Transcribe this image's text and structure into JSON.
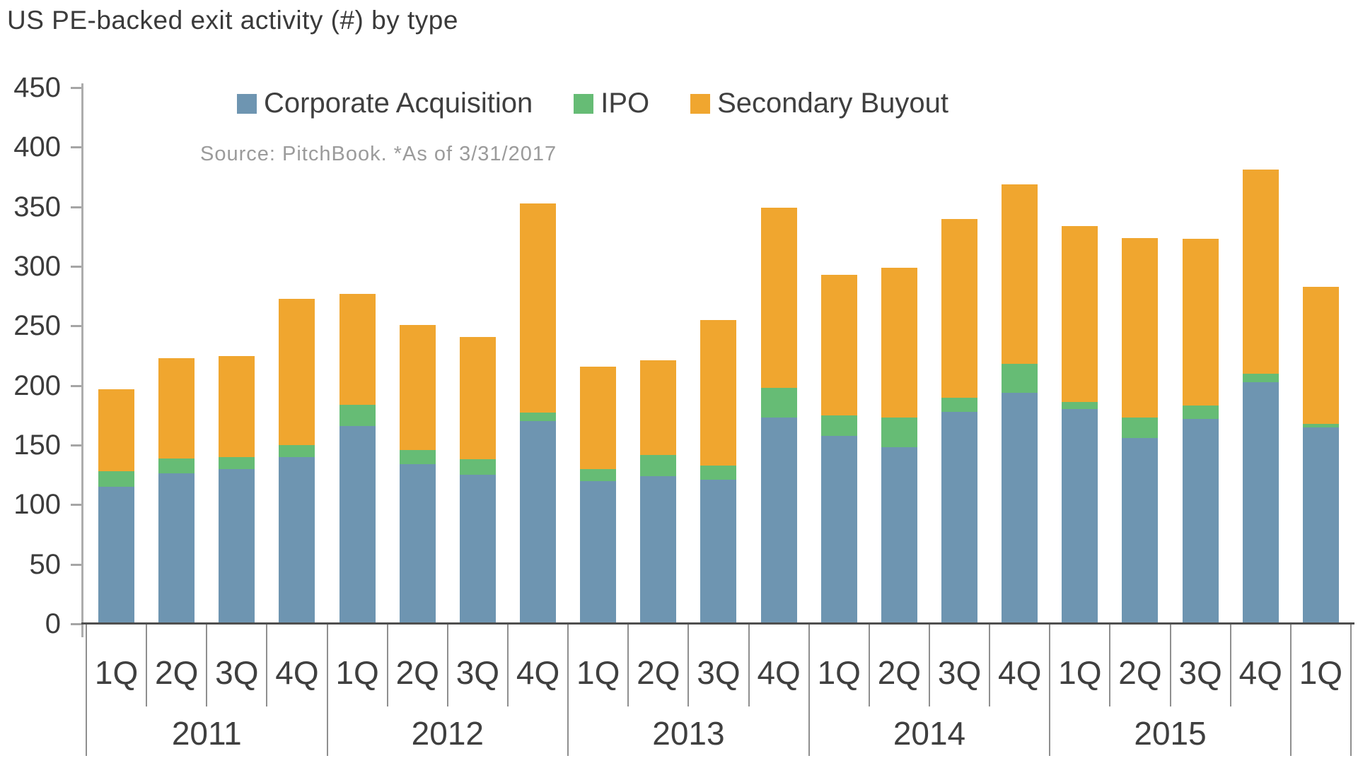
{
  "title": "US PE-backed exit activity (#) by type",
  "source_note": "Source: PitchBook. *As of 3/31/2017",
  "legend": [
    {
      "label": "Corporate Acquisition",
      "color": "#6e95b1"
    },
    {
      "label": "IPO",
      "color": "#66bc75"
    },
    {
      "label": "Secondary Buyout",
      "color": "#f0a62f"
    }
  ],
  "chart_data": {
    "type": "bar",
    "stacked": true,
    "title": "US PE-backed exit activity (#) by type",
    "xlabel": "",
    "ylabel": "",
    "ylim": [
      0,
      450
    ],
    "ytick_step": 50,
    "yticks": [
      0,
      50,
      100,
      150,
      200,
      250,
      300,
      350,
      400,
      450
    ],
    "grid": false,
    "legend_position": "top",
    "x_groups": [
      {
        "year": "2011",
        "quarters": [
          "1Q",
          "2Q",
          "3Q",
          "4Q"
        ]
      },
      {
        "year": "2012",
        "quarters": [
          "1Q",
          "2Q",
          "3Q",
          "4Q"
        ]
      },
      {
        "year": "2013",
        "quarters": [
          "1Q",
          "2Q",
          "3Q",
          "4Q"
        ]
      },
      {
        "year": "2014",
        "quarters": [
          "1Q",
          "2Q",
          "3Q",
          "4Q"
        ]
      },
      {
        "year": "2015",
        "quarters": [
          "1Q",
          "2Q",
          "3Q",
          "4Q"
        ]
      },
      {
        "year": "",
        "quarters": [
          "1Q"
        ]
      }
    ],
    "categories": [
      "1Q 2011",
      "2Q 2011",
      "3Q 2011",
      "4Q 2011",
      "1Q 2012",
      "2Q 2012",
      "3Q 2012",
      "4Q 2012",
      "1Q 2013",
      "2Q 2013",
      "3Q 2013",
      "4Q 2013",
      "1Q 2014",
      "2Q 2014",
      "3Q 2014",
      "4Q 2014",
      "1Q 2015",
      "2Q 2015",
      "3Q 2015",
      "4Q 2015",
      "1Q"
    ],
    "series": [
      {
        "name": "Corporate Acquisition",
        "color": "#6e95b1",
        "values": [
          115,
          126,
          130,
          140,
          166,
          134,
          125,
          170,
          120,
          124,
          121,
          173,
          158,
          148,
          178,
          194,
          180,
          156,
          172,
          203,
          165
        ]
      },
      {
        "name": "IPO",
        "color": "#66bc75",
        "values": [
          13,
          13,
          10,
          10,
          18,
          12,
          13,
          7,
          10,
          18,
          12,
          25,
          17,
          25,
          12,
          24,
          6,
          17,
          11,
          7,
          3
        ]
      },
      {
        "name": "Secondary Buyout",
        "color": "#f0a62f",
        "values": [
          69,
          84,
          85,
          123,
          93,
          105,
          103,
          176,
          86,
          79,
          122,
          151,
          118,
          126,
          150,
          151,
          148,
          151,
          140,
          171,
          115
        ]
      }
    ],
    "totals": [
      197,
      223,
      225,
      273,
      277,
      251,
      241,
      353,
      216,
      221,
      255,
      349,
      293,
      299,
      340,
      369,
      334,
      324,
      323,
      381,
      283
    ]
  }
}
